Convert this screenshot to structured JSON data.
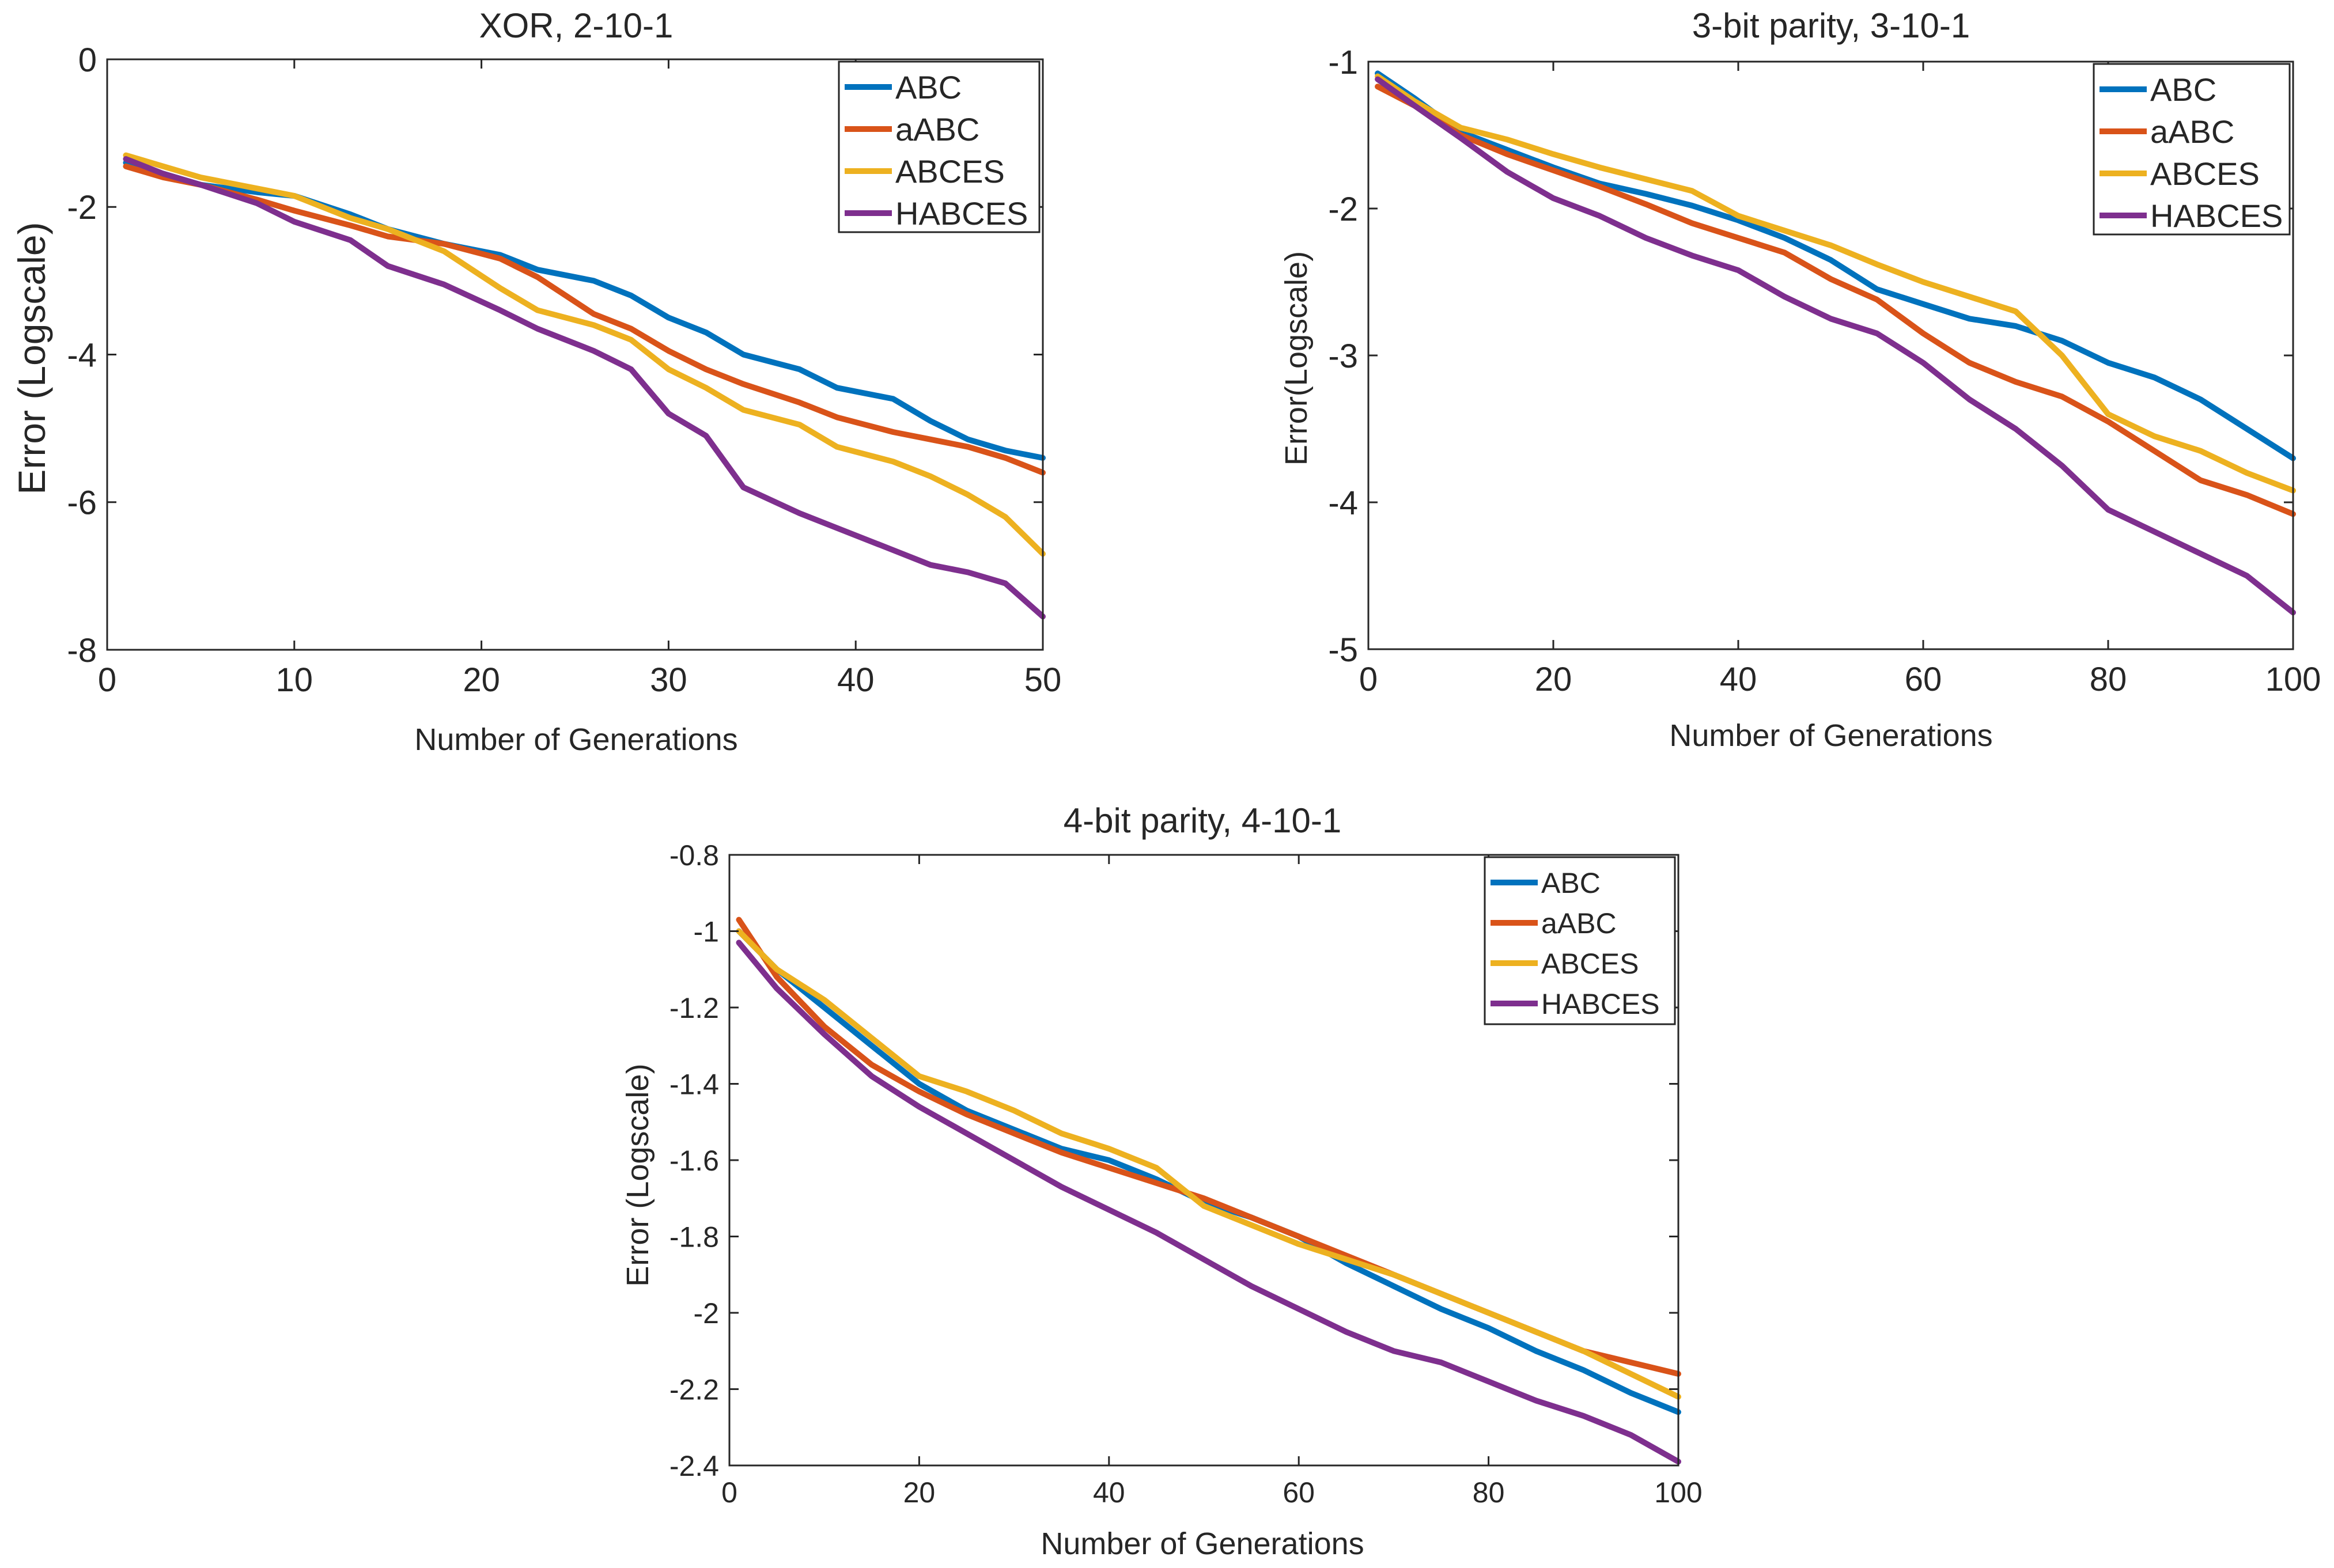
{
  "chart_data": [
    {
      "type": "line",
      "title": "XOR, 2-10-1",
      "xlabel": "Number of Generations",
      "ylabel": "Error (Logscale)",
      "xlim": [
        0,
        50
      ],
      "ylim": [
        -8,
        0
      ],
      "xticks": [
        0,
        10,
        20,
        30,
        40,
        50
      ],
      "yticks": [
        -8,
        -6,
        -4,
        -2,
        0
      ],
      "legend_position": "top-right",
      "grid": false,
      "x": [
        1,
        3,
        5,
        8,
        10,
        13,
        15,
        18,
        21,
        23,
        26,
        28,
        30,
        32,
        34,
        37,
        39,
        42,
        44,
        46,
        48,
        50
      ],
      "series": [
        {
          "name": "ABC",
          "color": "#0072BD",
          "values": [
            -1.4,
            -1.55,
            -1.7,
            -1.8,
            -1.85,
            -2.1,
            -2.3,
            -2.5,
            -2.65,
            -2.85,
            -3.0,
            -3.2,
            -3.5,
            -3.7,
            -4.0,
            -4.2,
            -4.45,
            -4.6,
            -4.9,
            -5.15,
            -5.3,
            -5.4
          ]
        },
        {
          "name": "aABC",
          "color": "#D95319",
          "values": [
            -1.45,
            -1.6,
            -1.7,
            -1.9,
            -2.05,
            -2.25,
            -2.4,
            -2.5,
            -2.7,
            -2.95,
            -3.45,
            -3.65,
            -3.95,
            -4.2,
            -4.4,
            -4.65,
            -4.85,
            -5.05,
            -5.15,
            -5.25,
            -5.4,
            -5.6
          ]
        },
        {
          "name": "ABCES",
          "color": "#EDB120",
          "values": [
            -1.3,
            -1.45,
            -1.6,
            -1.75,
            -1.85,
            -2.15,
            -2.3,
            -2.6,
            -3.1,
            -3.4,
            -3.6,
            -3.8,
            -4.2,
            -4.45,
            -4.75,
            -4.95,
            -5.25,
            -5.45,
            -5.65,
            -5.9,
            -6.2,
            -6.7
          ]
        },
        {
          "name": "HABCES",
          "color": "#7E2F8E",
          "values": [
            -1.35,
            -1.55,
            -1.7,
            -1.95,
            -2.2,
            -2.45,
            -2.8,
            -3.05,
            -3.4,
            -3.65,
            -3.95,
            -4.2,
            -4.8,
            -5.1,
            -5.8,
            -6.15,
            -6.35,
            -6.65,
            -6.85,
            -6.95,
            -7.1,
            -7.55
          ]
        }
      ]
    },
    {
      "type": "line",
      "title": "3-bit parity, 3-10-1",
      "xlabel": "Number of Generations",
      "ylabel": "Error(Logscale)",
      "xlim": [
        0,
        100
      ],
      "ylim": [
        -5,
        -1
      ],
      "xticks": [
        0,
        20,
        40,
        60,
        80,
        100
      ],
      "yticks": [
        -5,
        -4,
        -3,
        -2,
        -1
      ],
      "legend_position": "top-right",
      "grid": false,
      "x": [
        1,
        5,
        10,
        15,
        20,
        25,
        30,
        35,
        40,
        45,
        50,
        55,
        60,
        65,
        70,
        75,
        80,
        85,
        90,
        95,
        100
      ],
      "series": [
        {
          "name": "ABC",
          "color": "#0072BD",
          "values": [
            -1.08,
            -1.25,
            -1.48,
            -1.6,
            -1.72,
            -1.83,
            -1.9,
            -1.98,
            -2.08,
            -2.2,
            -2.35,
            -2.55,
            -2.65,
            -2.75,
            -2.8,
            -2.9,
            -3.05,
            -3.15,
            -3.3,
            -3.5,
            -3.7
          ]
        },
        {
          "name": "aABC",
          "color": "#D95319",
          "values": [
            -1.17,
            -1.3,
            -1.5,
            -1.63,
            -1.74,
            -1.85,
            -1.97,
            -2.1,
            -2.2,
            -2.3,
            -2.48,
            -2.62,
            -2.85,
            -3.05,
            -3.18,
            -3.28,
            -3.45,
            -3.65,
            -3.85,
            -3.95,
            -4.08
          ]
        },
        {
          "name": "ABCES",
          "color": "#EDB120",
          "values": [
            -1.1,
            -1.27,
            -1.45,
            -1.53,
            -1.63,
            -1.72,
            -1.8,
            -1.88,
            -2.05,
            -2.15,
            -2.25,
            -2.38,
            -2.5,
            -2.6,
            -2.7,
            -3.0,
            -3.4,
            -3.55,
            -3.65,
            -3.8,
            -3.92
          ]
        },
        {
          "name": "HABCES",
          "color": "#7E2F8E",
          "values": [
            -1.12,
            -1.3,
            -1.52,
            -1.75,
            -1.93,
            -2.05,
            -2.2,
            -2.32,
            -2.42,
            -2.6,
            -2.75,
            -2.85,
            -3.05,
            -3.3,
            -3.5,
            -3.75,
            -4.05,
            -4.2,
            -4.35,
            -4.5,
            -4.75
          ]
        }
      ]
    },
    {
      "type": "line",
      "title": "4-bit parity, 4-10-1",
      "xlabel": "Number of Generations",
      "ylabel": "Error (Logscale)",
      "xlim": [
        0,
        100
      ],
      "ylim": [
        -2.4,
        -0.8
      ],
      "xticks": [
        0,
        20,
        40,
        60,
        80,
        100
      ],
      "yticks": [
        -2.4,
        -2.2,
        -2,
        -1.8,
        -1.6,
        -1.4,
        -1.2,
        -1,
        -0.8
      ],
      "ytick_labels": [
        "-2.4",
        "-2.2",
        "-2",
        "-1.8",
        "-1.6",
        "-1.4",
        "-1.2",
        "-1",
        "-0.8"
      ],
      "legend_position": "top-right",
      "grid": false,
      "x": [
        1,
        5,
        10,
        15,
        20,
        25,
        30,
        35,
        40,
        45,
        50,
        55,
        60,
        65,
        70,
        75,
        80,
        85,
        90,
        95,
        100
      ],
      "series": [
        {
          "name": "ABC",
          "color": "#0072BD",
          "values": [
            -1.0,
            -1.1,
            -1.2,
            -1.3,
            -1.4,
            -1.47,
            -1.52,
            -1.57,
            -1.6,
            -1.65,
            -1.71,
            -1.75,
            -1.8,
            -1.87,
            -1.93,
            -1.99,
            -2.04,
            -2.1,
            -2.15,
            -2.21,
            -2.26
          ]
        },
        {
          "name": "aABC",
          "color": "#D95319",
          "values": [
            -0.97,
            -1.12,
            -1.25,
            -1.35,
            -1.42,
            -1.48,
            -1.53,
            -1.58,
            -1.62,
            -1.66,
            -1.7,
            -1.75,
            -1.8,
            -1.85,
            -1.9,
            -1.95,
            -2.0,
            -2.05,
            -2.1,
            -2.13,
            -2.16
          ]
        },
        {
          "name": "ABCES",
          "color": "#EDB120",
          "values": [
            -1.0,
            -1.1,
            -1.18,
            -1.28,
            -1.38,
            -1.42,
            -1.47,
            -1.53,
            -1.57,
            -1.62,
            -1.72,
            -1.77,
            -1.82,
            -1.86,
            -1.9,
            -1.95,
            -2.0,
            -2.05,
            -2.1,
            -2.16,
            -2.22
          ]
        },
        {
          "name": "HABCES",
          "color": "#7E2F8E",
          "values": [
            -1.03,
            -1.15,
            -1.27,
            -1.38,
            -1.46,
            -1.53,
            -1.6,
            -1.67,
            -1.73,
            -1.79,
            -1.86,
            -1.93,
            -1.99,
            -2.05,
            -2.1,
            -2.13,
            -2.18,
            -2.23,
            -2.27,
            -2.32,
            -2.39
          ]
        }
      ]
    }
  ]
}
